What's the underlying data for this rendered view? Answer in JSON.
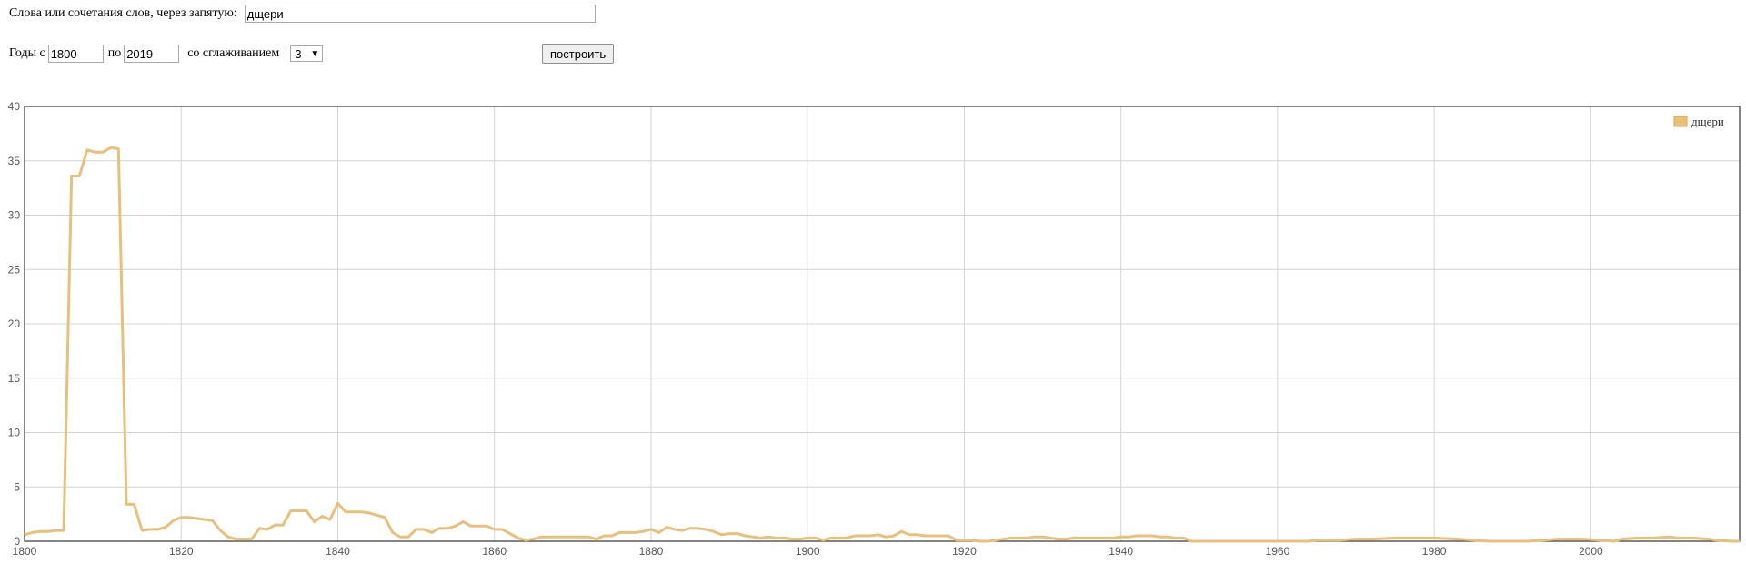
{
  "form": {
    "words_label": "Слова или сочетания слов, через запятую:",
    "words_value": "дщери",
    "years_from_label": "Годы с",
    "year_from": "1800",
    "years_to_label": "по",
    "year_to": "2019",
    "smoothing_label": "со сглаживанием",
    "smoothing_value": "3",
    "build_label": "построить"
  },
  "chart_data": {
    "type": "line",
    "title": "",
    "xlabel": "",
    "ylabel": "",
    "xlim": [
      1800,
      2019
    ],
    "ylim": [
      0,
      40
    ],
    "x_ticks": [
      1800,
      1820,
      1840,
      1860,
      1880,
      1900,
      1920,
      1940,
      1960,
      1980,
      2000
    ],
    "y_ticks": [
      0,
      5,
      10,
      15,
      20,
      25,
      30,
      35,
      40
    ],
    "grid": true,
    "legend_position": "top-right",
    "series": [
      {
        "name": "дщери",
        "color": "#e8c07a",
        "points": [
          [
            1800,
            0.6
          ],
          [
            1801,
            0.8
          ],
          [
            1802,
            0.9
          ],
          [
            1803,
            0.9
          ],
          [
            1804,
            1.0
          ],
          [
            1805,
            1.0
          ],
          [
            1806,
            33.6
          ],
          [
            1807,
            33.6
          ],
          [
            1808,
            36.0
          ],
          [
            1809,
            35.8
          ],
          [
            1810,
            35.8
          ],
          [
            1811,
            36.2
          ],
          [
            1812,
            36.1
          ],
          [
            1813,
            3.4
          ],
          [
            1814,
            3.4
          ],
          [
            1815,
            1.0
          ],
          [
            1816,
            1.1
          ],
          [
            1817,
            1.1
          ],
          [
            1818,
            1.3
          ],
          [
            1819,
            1.9
          ],
          [
            1820,
            2.2
          ],
          [
            1821,
            2.2
          ],
          [
            1822,
            2.1
          ],
          [
            1823,
            2.0
          ],
          [
            1824,
            1.9
          ],
          [
            1825,
            1.0
          ],
          [
            1826,
            0.4
          ],
          [
            1827,
            0.2
          ],
          [
            1828,
            0.2
          ],
          [
            1829,
            0.2
          ],
          [
            1830,
            1.2
          ],
          [
            1831,
            1.1
          ],
          [
            1832,
            1.5
          ],
          [
            1833,
            1.5
          ],
          [
            1834,
            2.8
          ],
          [
            1835,
            2.8
          ],
          [
            1836,
            2.8
          ],
          [
            1837,
            1.8
          ],
          [
            1838,
            2.3
          ],
          [
            1839,
            2.0
          ],
          [
            1840,
            3.5
          ],
          [
            1841,
            2.7
          ],
          [
            1842,
            2.7
          ],
          [
            1843,
            2.7
          ],
          [
            1844,
            2.6
          ],
          [
            1845,
            2.4
          ],
          [
            1846,
            2.2
          ],
          [
            1847,
            0.8
          ],
          [
            1848,
            0.4
          ],
          [
            1849,
            0.4
          ],
          [
            1850,
            1.1
          ],
          [
            1851,
            1.1
          ],
          [
            1852,
            0.8
          ],
          [
            1853,
            1.2
          ],
          [
            1854,
            1.2
          ],
          [
            1855,
            1.4
          ],
          [
            1856,
            1.8
          ],
          [
            1857,
            1.4
          ],
          [
            1858,
            1.4
          ],
          [
            1859,
            1.4
          ],
          [
            1860,
            1.1
          ],
          [
            1861,
            1.1
          ],
          [
            1862,
            0.7
          ],
          [
            1863,
            0.3
          ],
          [
            1864,
            0.1
          ],
          [
            1865,
            0.2
          ],
          [
            1866,
            0.4
          ],
          [
            1867,
            0.4
          ],
          [
            1868,
            0.4
          ],
          [
            1869,
            0.4
          ],
          [
            1870,
            0.4
          ],
          [
            1871,
            0.4
          ],
          [
            1872,
            0.4
          ],
          [
            1873,
            0.2
          ],
          [
            1874,
            0.5
          ],
          [
            1875,
            0.5
          ],
          [
            1876,
            0.8
          ],
          [
            1877,
            0.8
          ],
          [
            1878,
            0.8
          ],
          [
            1879,
            0.9
          ],
          [
            1880,
            1.1
          ],
          [
            1881,
            0.8
          ],
          [
            1882,
            1.3
          ],
          [
            1883,
            1.1
          ],
          [
            1884,
            1.0
          ],
          [
            1885,
            1.2
          ],
          [
            1886,
            1.2
          ],
          [
            1887,
            1.1
          ],
          [
            1888,
            0.9
          ],
          [
            1889,
            0.6
          ],
          [
            1890,
            0.7
          ],
          [
            1891,
            0.7
          ],
          [
            1892,
            0.5
          ],
          [
            1893,
            0.4
          ],
          [
            1894,
            0.3
          ],
          [
            1895,
            0.4
          ],
          [
            1896,
            0.3
          ],
          [
            1897,
            0.3
          ],
          [
            1898,
            0.2
          ],
          [
            1899,
            0.2
          ],
          [
            1900,
            0.3
          ],
          [
            1901,
            0.3
          ],
          [
            1902,
            0.1
          ],
          [
            1903,
            0.3
          ],
          [
            1904,
            0.3
          ],
          [
            1905,
            0.3
          ],
          [
            1906,
            0.5
          ],
          [
            1907,
            0.5
          ],
          [
            1908,
            0.5
          ],
          [
            1909,
            0.6
          ],
          [
            1910,
            0.4
          ],
          [
            1911,
            0.5
          ],
          [
            1912,
            0.9
          ],
          [
            1913,
            0.6
          ],
          [
            1914,
            0.6
          ],
          [
            1915,
            0.5
          ],
          [
            1916,
            0.5
          ],
          [
            1917,
            0.5
          ],
          [
            1918,
            0.5
          ],
          [
            1919,
            0.1
          ],
          [
            1920,
            0.1
          ],
          [
            1921,
            0.1
          ],
          [
            1922,
            0.0
          ],
          [
            1923,
            0.0
          ],
          [
            1924,
            0.1
          ],
          [
            1925,
            0.2
          ],
          [
            1926,
            0.3
          ],
          [
            1927,
            0.3
          ],
          [
            1928,
            0.3
          ],
          [
            1929,
            0.4
          ],
          [
            1930,
            0.4
          ],
          [
            1931,
            0.3
          ],
          [
            1932,
            0.2
          ],
          [
            1933,
            0.2
          ],
          [
            1934,
            0.3
          ],
          [
            1935,
            0.3
          ],
          [
            1936,
            0.3
          ],
          [
            1937,
            0.3
          ],
          [
            1938,
            0.3
          ],
          [
            1939,
            0.3
          ],
          [
            1940,
            0.4
          ],
          [
            1941,
            0.4
          ],
          [
            1942,
            0.5
          ],
          [
            1943,
            0.5
          ],
          [
            1944,
            0.5
          ],
          [
            1945,
            0.4
          ],
          [
            1946,
            0.4
          ],
          [
            1947,
            0.3
          ],
          [
            1948,
            0.3
          ],
          [
            1949,
            0.0
          ],
          [
            1950,
            0.0
          ],
          [
            1955,
            0.0
          ],
          [
            1960,
            0.0
          ],
          [
            1964,
            0.0
          ],
          [
            1965,
            0.1
          ],
          [
            1968,
            0.1
          ],
          [
            1970,
            0.2
          ],
          [
            1972,
            0.2
          ],
          [
            1975,
            0.3
          ],
          [
            1980,
            0.3
          ],
          [
            1983,
            0.2
          ],
          [
            1985,
            0.1
          ],
          [
            1987,
            0.0
          ],
          [
            1990,
            0.0
          ],
          [
            1992,
            0.0
          ],
          [
            1994,
            0.1
          ],
          [
            1996,
            0.2
          ],
          [
            1999,
            0.2
          ],
          [
            2001,
            0.1
          ],
          [
            2003,
            0.0
          ],
          [
            2004,
            0.2
          ],
          [
            2006,
            0.3
          ],
          [
            2008,
            0.3
          ],
          [
            2010,
            0.4
          ],
          [
            2011,
            0.3
          ],
          [
            2013,
            0.3
          ],
          [
            2015,
            0.2
          ],
          [
            2016,
            0.1
          ],
          [
            2018,
            0.0
          ],
          [
            2019,
            0.0
          ]
        ]
      }
    ]
  }
}
